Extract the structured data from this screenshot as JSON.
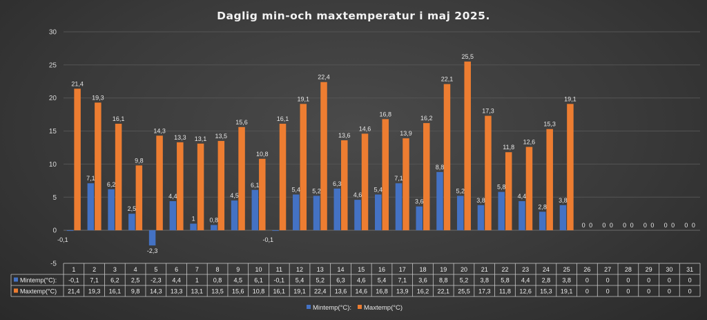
{
  "chart_data": {
    "type": "bar",
    "title": "Daglig min-och maxtemperatur i maj 2025.",
    "categories": [
      "1",
      "2",
      "3",
      "4",
      "5",
      "6",
      "7",
      "8",
      "9",
      "10",
      "11",
      "12",
      "13",
      "14",
      "15",
      "16",
      "17",
      "18",
      "19",
      "20",
      "21",
      "22",
      "23",
      "24",
      "25",
      "26",
      "27",
      "28",
      "29",
      "30",
      "31"
    ],
    "series": [
      {
        "name": "Mintemp(°C):",
        "color": "#4472c4",
        "values": [
          -0.1,
          7.1,
          6.2,
          2.5,
          -2.3,
          4.4,
          1,
          0.8,
          4.5,
          6.1,
          -0.1,
          5.4,
          5.2,
          6.3,
          4.6,
          5.4,
          7.1,
          3.6,
          8.8,
          5.2,
          3.8,
          5.8,
          4.4,
          2.8,
          3.8,
          0,
          0,
          0,
          0,
          0,
          0
        ],
        "labels": [
          "-0,1",
          "7,1",
          "6,2",
          "2,5",
          "-2,3",
          "4,4",
          "1",
          "0,8",
          "4,5",
          "6,1",
          "-0,1",
          "5,4",
          "5,2",
          "6,3",
          "4,6",
          "5,4",
          "7,1",
          "3,6",
          "8,8",
          "5,2",
          "3,8",
          "5,8",
          "4,4",
          "2,8",
          "3,8",
          "0",
          "0",
          "0",
          "0",
          "0",
          "0"
        ]
      },
      {
        "name": "Maxtemp(°C)",
        "color": "#ed7d31",
        "values": [
          21.4,
          19.3,
          16.1,
          9.8,
          14.3,
          13.3,
          13.1,
          13.5,
          15.6,
          10.8,
          16.1,
          19.1,
          22.4,
          13.6,
          14.6,
          16.8,
          13.9,
          16.2,
          22.1,
          25.5,
          17.3,
          11.8,
          12.6,
          15.3,
          19.1,
          0,
          0,
          0,
          0,
          0,
          0
        ],
        "labels": [
          "21,4",
          "19,3",
          "16,1",
          "9,8",
          "14,3",
          "13,3",
          "13,1",
          "13,5",
          "15,6",
          "10,8",
          "16,1",
          "19,1",
          "22,4",
          "13,6",
          "14,6",
          "16,8",
          "13,9",
          "16,2",
          "22,1",
          "25,5",
          "17,3",
          "11,8",
          "12,6",
          "15,3",
          "19,1",
          "0",
          "0",
          "0",
          "0",
          "0",
          "0"
        ]
      }
    ],
    "table_row_names": [
      "Mintemp(°C):",
      "Maxtemp(°C)"
    ],
    "ylim": [
      -5,
      30
    ],
    "yticks": [
      "-5",
      "0",
      "5",
      "10",
      "15",
      "20",
      "25",
      "30"
    ],
    "grid": true,
    "legend": "bottom",
    "data_table": true
  }
}
